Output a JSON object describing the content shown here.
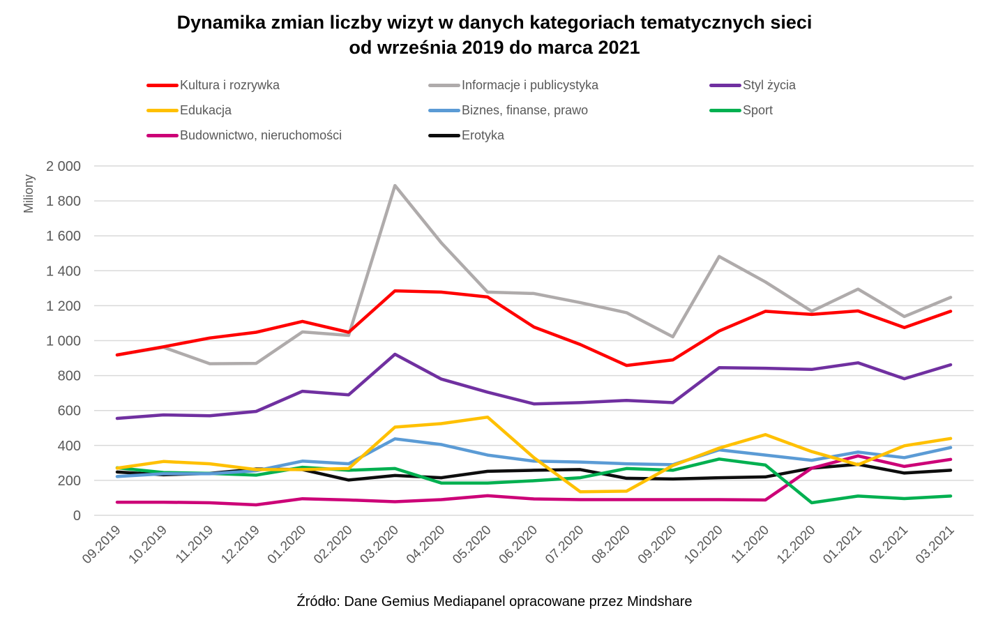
{
  "chart_data": {
    "type": "line",
    "title": [
      "Dynamika zmian liczby wizyt w danych kategoriach tematycznych sieci",
      "od września 2019 do marca 2021"
    ],
    "xlabel": "",
    "ylabel": "Miliony",
    "ylim": [
      0,
      2000
    ],
    "yticks": [
      0,
      200,
      400,
      600,
      800,
      1000,
      1200,
      1400,
      1600,
      1800,
      2000
    ],
    "ytick_labels": [
      "0",
      "200",
      "400",
      "600",
      "800",
      "1 000",
      "1 200",
      "1 400",
      "1 600",
      "1 800",
      "2 000"
    ],
    "grid": true,
    "legend_position": "top",
    "categories": [
      "09.2019",
      "10.2019",
      "11.2019",
      "12.2019",
      "01.2020",
      "02.2020",
      "03.2020",
      "04.2020",
      "05.2020",
      "06.2020",
      "07.2020",
      "08.2020",
      "09.2020",
      "10.2020",
      "11.2020",
      "12.2020",
      "01.2021",
      "02.2021",
      "03.2021"
    ],
    "series": [
      {
        "name": "Kultura i rozrywka",
        "color": "#ff0000",
        "values": [
          918,
          965,
          1015,
          1048,
          1110,
          1048,
          1285,
          1278,
          1250,
          1078,
          978,
          858,
          890,
          1055,
          1168,
          1150,
          1170,
          1075,
          1168
        ]
      },
      {
        "name": "Informacje i publicystyka",
        "color": "#afabab",
        "values": [
          918,
          962,
          868,
          870,
          1050,
          1030,
          1888,
          1560,
          1278,
          1270,
          1218,
          1160,
          1022,
          1482,
          1336,
          1168,
          1295,
          1138,
          1248
        ]
      },
      {
        "name": "Styl życia",
        "color": "#7030a0",
        "values": [
          555,
          575,
          570,
          595,
          710,
          690,
          922,
          780,
          705,
          638,
          645,
          658,
          645,
          845,
          842,
          835,
          873,
          782,
          862
        ]
      },
      {
        "name": "Edukacja",
        "color": "#ffc000",
        "values": [
          270,
          308,
          295,
          262,
          262,
          268,
          505,
          525,
          562,
          330,
          135,
          138,
          285,
          385,
          462,
          365,
          290,
          398,
          440
        ]
      },
      {
        "name": "Biznes, finanse, prawo",
        "color": "#5b9bd5",
        "values": [
          222,
          238,
          238,
          255,
          310,
          295,
          438,
          405,
          345,
          310,
          305,
          295,
          290,
          375,
          345,
          315,
          362,
          330,
          388
        ]
      },
      {
        "name": "Sport",
        "color": "#00b050",
        "values": [
          272,
          245,
          240,
          230,
          275,
          258,
          268,
          185,
          185,
          198,
          215,
          268,
          258,
          322,
          288,
          72,
          110,
          96,
          110
        ]
      },
      {
        "name": "Budownictwo, nieruchomości",
        "color": "#cc0077",
        "values": [
          75,
          75,
          72,
          60,
          95,
          88,
          78,
          90,
          112,
          94,
          90,
          90,
          90,
          90,
          88,
          270,
          340,
          280,
          320
        ]
      },
      {
        "name": "Erotyka",
        "color": "#0d0d0d",
        "values": [
          248,
          232,
          240,
          265,
          262,
          202,
          228,
          215,
          252,
          258,
          262,
          212,
          208,
          215,
          220,
          270,
          292,
          242,
          258
        ]
      }
    ]
  },
  "legend": {
    "items": [
      {
        "label": "Kultura i rozrywka",
        "color": "#ff0000"
      },
      {
        "label": "Informacje i publicystyka",
        "color": "#afabab"
      },
      {
        "label": "Styl życia",
        "color": "#7030a0"
      },
      {
        "label": "Edukacja",
        "color": "#ffc000"
      },
      {
        "label": "Biznes, finanse, prawo",
        "color": "#5b9bd5"
      },
      {
        "label": "Sport",
        "color": "#00b050"
      },
      {
        "label": "Budownictwo, nieruchomości",
        "color": "#cc0077"
      },
      {
        "label": "Erotyka",
        "color": "#0d0d0d"
      }
    ]
  },
  "source": "Źródło: Dane Gemius Mediapanel opracowane przez Mindshare"
}
